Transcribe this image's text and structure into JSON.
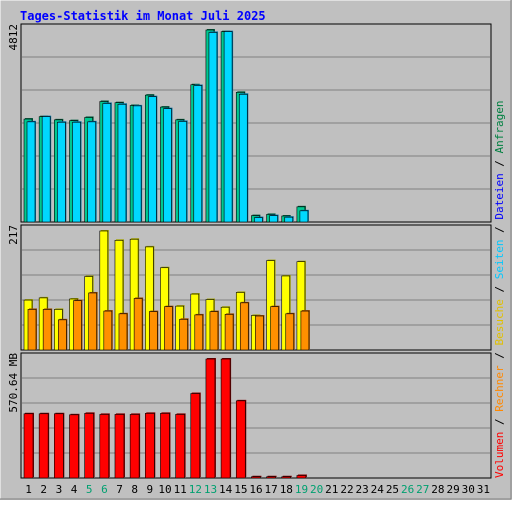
{
  "chart_data": [
    {
      "type": "bar",
      "title": "Tages-Statistik im Monat Juli 2025",
      "panel": "top",
      "max_label": "4812",
      "categories": [
        "1",
        "2",
        "3",
        "4",
        "5",
        "6",
        "7",
        "8",
        "9",
        "10",
        "11",
        "12",
        "13",
        "14",
        "15",
        "16",
        "17",
        "18",
        "19",
        "20",
        "21",
        "22",
        "23",
        "24",
        "25",
        "26",
        "27",
        "28",
        "29",
        "30",
        "31"
      ],
      "series": [
        {
          "name": "Anfragen",
          "values": [
            2580,
            2640,
            2560,
            2540,
            2620,
            3020,
            2990,
            2920,
            3180,
            2880,
            2560,
            3440,
            4812,
            4770,
            3250,
            160,
            190,
            150,
            380,
            0,
            0,
            0,
            0,
            0,
            0,
            0,
            0,
            0,
            0,
            0,
            0
          ]
        },
        {
          "name": "Dateien",
          "values": [
            2510,
            2640,
            2500,
            2500,
            2510,
            2970,
            2950,
            2910,
            3140,
            2840,
            2520,
            3420,
            4750,
            4770,
            3200,
            110,
            160,
            120,
            280,
            0,
            0,
            0,
            0,
            0,
            0,
            0,
            0,
            0,
            0,
            0,
            0
          ]
        }
      ]
    },
    {
      "type": "bar",
      "panel": "middle",
      "max_label": "217",
      "categories": [
        "1",
        "2",
        "3",
        "4",
        "5",
        "6",
        "7",
        "8",
        "9",
        "10",
        "11",
        "12",
        "13",
        "14",
        "15",
        "16",
        "17",
        "18",
        "19",
        "20",
        "21",
        "22",
        "23",
        "24",
        "25",
        "26",
        "27",
        "28",
        "29",
        "30",
        "31"
      ],
      "series": [
        {
          "name": "Seiten",
          "values": [
            91,
            95,
            74,
            93,
            134,
            217,
            200,
            202,
            188,
            150,
            80,
            102,
            92,
            78,
            105,
            63,
            163,
            135,
            161,
            0,
            0,
            0,
            0,
            0,
            0,
            0,
            0,
            0,
            0,
            0,
            0
          ]
        },
        {
          "name": "Besuche",
          "values": [
            74,
            74,
            55,
            90,
            104,
            71,
            66,
            94,
            70,
            79,
            56,
            64,
            70,
            65,
            86,
            62,
            79,
            66,
            71,
            0,
            0,
            0,
            0,
            0,
            0,
            0,
            0,
            0,
            0,
            0,
            0
          ]
        }
      ]
    },
    {
      "type": "bar",
      "panel": "bottom",
      "max_label": "570.64 MB",
      "categories": [
        "1",
        "2",
        "3",
        "4",
        "5",
        "6",
        "7",
        "8",
        "9",
        "10",
        "11",
        "12",
        "13",
        "14",
        "15",
        "16",
        "17",
        "18",
        "19",
        "20",
        "21",
        "22",
        "23",
        "24",
        "25",
        "26",
        "27",
        "28",
        "29",
        "30",
        "31"
      ],
      "series": [
        {
          "name": "Volumen",
          "values": [
            308,
            308,
            308,
            303,
            310,
            305,
            305,
            305,
            310,
            310,
            305,
            405,
            570.64,
            570.64,
            370,
            6,
            6,
            6,
            12,
            0,
            0,
            0,
            0,
            0,
            0,
            0,
            0,
            0,
            0,
            0,
            0
          ]
        }
      ]
    }
  ],
  "legend": [
    {
      "label": "Volumen",
      "color": "#ff0000"
    },
    {
      "label": "Rechner",
      "color": "#ff8800"
    },
    {
      "label": "Besuche",
      "color": "#ffff00"
    },
    {
      "label": "Seiten",
      "color": "#00c8ff"
    },
    {
      "label": "Dateien",
      "color": "#0000ff"
    },
    {
      "label": "Anfragen",
      "color": "#008040"
    }
  ],
  "weekend_days": [
    "5",
    "6",
    "12",
    "13",
    "19",
    "20",
    "26",
    "27"
  ],
  "colors": {
    "background": "#c0c0c0",
    "title": "#0000ff",
    "anfragen": "#00c890",
    "anfragen_dark": "#006040",
    "dateien": "#00d8ff",
    "dateien_dark": "#0070a0",
    "seiten": "#ffff00",
    "seiten_dark": "#a0a000",
    "besuche": "#ff9000",
    "besuche_dark": "#a05000",
    "volumen": "#ff0000",
    "volumen_dark": "#800000",
    "weekday_label": "#000000",
    "weekend_label": "#00a070"
  }
}
